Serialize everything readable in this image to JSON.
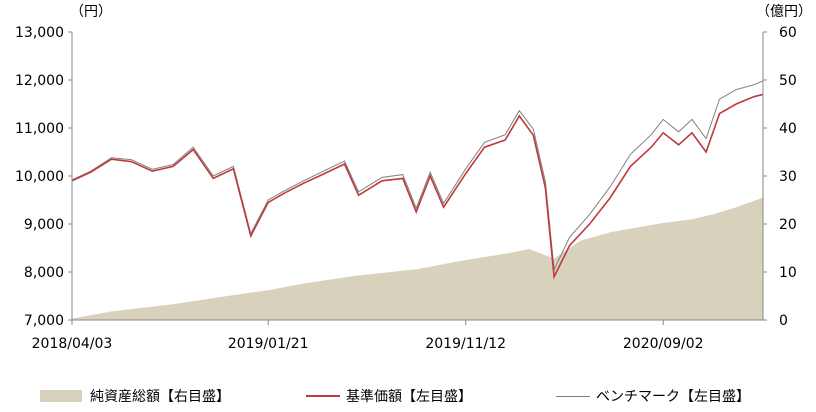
{
  "chart_data": {
    "type": "line",
    "left_axis_unit": "（円）",
    "right_axis_unit": "（億円）",
    "left_ylim": [
      7000,
      13000
    ],
    "right_ylim": [
      0,
      60
    ],
    "left_ticks": [
      "13,000",
      "12,000",
      "11,000",
      "10,000",
      "9,000",
      "8,000",
      "7,000"
    ],
    "right_ticks": [
      "60",
      "50",
      "40",
      "30",
      "20",
      "10",
      "0"
    ],
    "left_tick_values": [
      13000,
      12000,
      11000,
      10000,
      9000,
      8000,
      7000
    ],
    "right_tick_values": [
      60,
      50,
      40,
      30,
      20,
      10,
      0
    ],
    "x_tick_labels": [
      "2018/04/03",
      "2019/01/21",
      "2019/11/12",
      "2020/09/02"
    ],
    "x_tick_dates": [
      "2018-04-03",
      "2019-01-21",
      "2019-11-12",
      "2020-09-02"
    ],
    "x_range": [
      "2018-04-03",
      "2021-01-29"
    ],
    "colors": {
      "nav_fill": "#d8d2bc",
      "price_line": "#c0393b",
      "benchmark_line": "#808080",
      "axis": "#888888"
    },
    "series": [
      {
        "name": "基準価額【左目盛】",
        "axis": "left",
        "points": [
          [
            "2018-04-03",
            9900
          ],
          [
            "2018-05-01",
            10080
          ],
          [
            "2018-06-01",
            10350
          ],
          [
            "2018-07-01",
            10300
          ],
          [
            "2018-08-01",
            10100
          ],
          [
            "2018-09-01",
            10200
          ],
          [
            "2018-10-01",
            10550
          ],
          [
            "2018-10-31",
            9950
          ],
          [
            "2018-11-30",
            10150
          ],
          [
            "2018-12-26",
            8750
          ],
          [
            "2019-01-21",
            9450
          ],
          [
            "2019-02-15",
            9650
          ],
          [
            "2019-03-15",
            9850
          ],
          [
            "2019-04-15",
            10050
          ],
          [
            "2019-05-15",
            10250
          ],
          [
            "2019-06-05",
            9600
          ],
          [
            "2019-07-10",
            9900
          ],
          [
            "2019-08-10",
            9950
          ],
          [
            "2019-08-30",
            9250
          ],
          [
            "2019-09-20",
            10000
          ],
          [
            "2019-10-10",
            9350
          ],
          [
            "2019-11-12",
            10050
          ],
          [
            "2019-12-10",
            10600
          ],
          [
            "2020-01-10",
            10750
          ],
          [
            "2020-01-31",
            11250
          ],
          [
            "2020-02-21",
            10850
          ],
          [
            "2020-03-10",
            9750
          ],
          [
            "2020-03-23",
            7900
          ],
          [
            "2020-04-15",
            8550
          ],
          [
            "2020-05-15",
            9000
          ],
          [
            "2020-06-15",
            9550
          ],
          [
            "2020-07-15",
            10200
          ],
          [
            "2020-08-15",
            10600
          ],
          [
            "2020-09-02",
            10900
          ],
          [
            "2020-09-25",
            10650
          ],
          [
            "2020-10-15",
            10900
          ],
          [
            "2020-11-05",
            10500
          ],
          [
            "2020-11-25",
            11300
          ],
          [
            "2020-12-20",
            11500
          ],
          [
            "2021-01-15",
            11650
          ],
          [
            "2021-01-29",
            11700
          ]
        ]
      },
      {
        "name": "ベンチマーク【左目盛】",
        "axis": "left",
        "points": [
          [
            "2018-04-03",
            9920
          ],
          [
            "2018-05-01",
            10100
          ],
          [
            "2018-06-01",
            10380
          ],
          [
            "2018-07-01",
            10340
          ],
          [
            "2018-08-01",
            10140
          ],
          [
            "2018-09-01",
            10240
          ],
          [
            "2018-10-01",
            10600
          ],
          [
            "2018-10-31",
            10000
          ],
          [
            "2018-11-30",
            10200
          ],
          [
            "2018-12-26",
            8800
          ],
          [
            "2019-01-21",
            9500
          ],
          [
            "2019-02-15",
            9700
          ],
          [
            "2019-03-15",
            9900
          ],
          [
            "2019-04-15",
            10110
          ],
          [
            "2019-05-15",
            10310
          ],
          [
            "2019-06-05",
            9670
          ],
          [
            "2019-07-10",
            9970
          ],
          [
            "2019-08-10",
            10030
          ],
          [
            "2019-08-30",
            9330
          ],
          [
            "2019-09-20",
            10080
          ],
          [
            "2019-10-10",
            9430
          ],
          [
            "2019-11-12",
            10150
          ],
          [
            "2019-12-10",
            10700
          ],
          [
            "2020-01-10",
            10860
          ],
          [
            "2020-01-31",
            11360
          ],
          [
            "2020-02-21",
            10980
          ],
          [
            "2020-03-10",
            9880
          ],
          [
            "2020-03-23",
            8050
          ],
          [
            "2020-04-15",
            8720
          ],
          [
            "2020-05-15",
            9200
          ],
          [
            "2020-06-15",
            9780
          ],
          [
            "2020-07-15",
            10450
          ],
          [
            "2020-08-15",
            10860
          ],
          [
            "2020-09-02",
            11180
          ],
          [
            "2020-09-25",
            10920
          ],
          [
            "2020-10-15",
            11180
          ],
          [
            "2020-11-05",
            10780
          ],
          [
            "2020-11-25",
            11600
          ],
          [
            "2020-12-20",
            11800
          ],
          [
            "2021-01-15",
            11900
          ],
          [
            "2021-01-29",
            11980
          ]
        ]
      },
      {
        "name": "純資産総額【右目盛】",
        "axis": "right",
        "type": "area",
        "points": [
          [
            "2018-04-03",
            0.3
          ],
          [
            "2018-06-01",
            1.8
          ],
          [
            "2018-09-01",
            3.3
          ],
          [
            "2018-12-01",
            5.2
          ],
          [
            "2019-01-21",
            6.2
          ],
          [
            "2019-03-15",
            7.6
          ],
          [
            "2019-06-01",
            9.2
          ],
          [
            "2019-09-01",
            10.6
          ],
          [
            "2019-11-12",
            12.5
          ],
          [
            "2020-01-10",
            13.8
          ],
          [
            "2020-02-15",
            14.8
          ],
          [
            "2020-03-23",
            12.8
          ],
          [
            "2020-05-01",
            16.5
          ],
          [
            "2020-06-15",
            18.3
          ],
          [
            "2020-08-15",
            19.8
          ],
          [
            "2020-09-02",
            20.2
          ],
          [
            "2020-10-15",
            21.0
          ],
          [
            "2020-11-15",
            22.0
          ],
          [
            "2020-12-20",
            23.5
          ],
          [
            "2021-01-29",
            25.5
          ]
        ]
      }
    ],
    "legend": {
      "nav": "純資産総額【右目盛】",
      "price": "基準価額【左目盛】",
      "benchmark": "ベンチマーク【左目盛】"
    }
  }
}
